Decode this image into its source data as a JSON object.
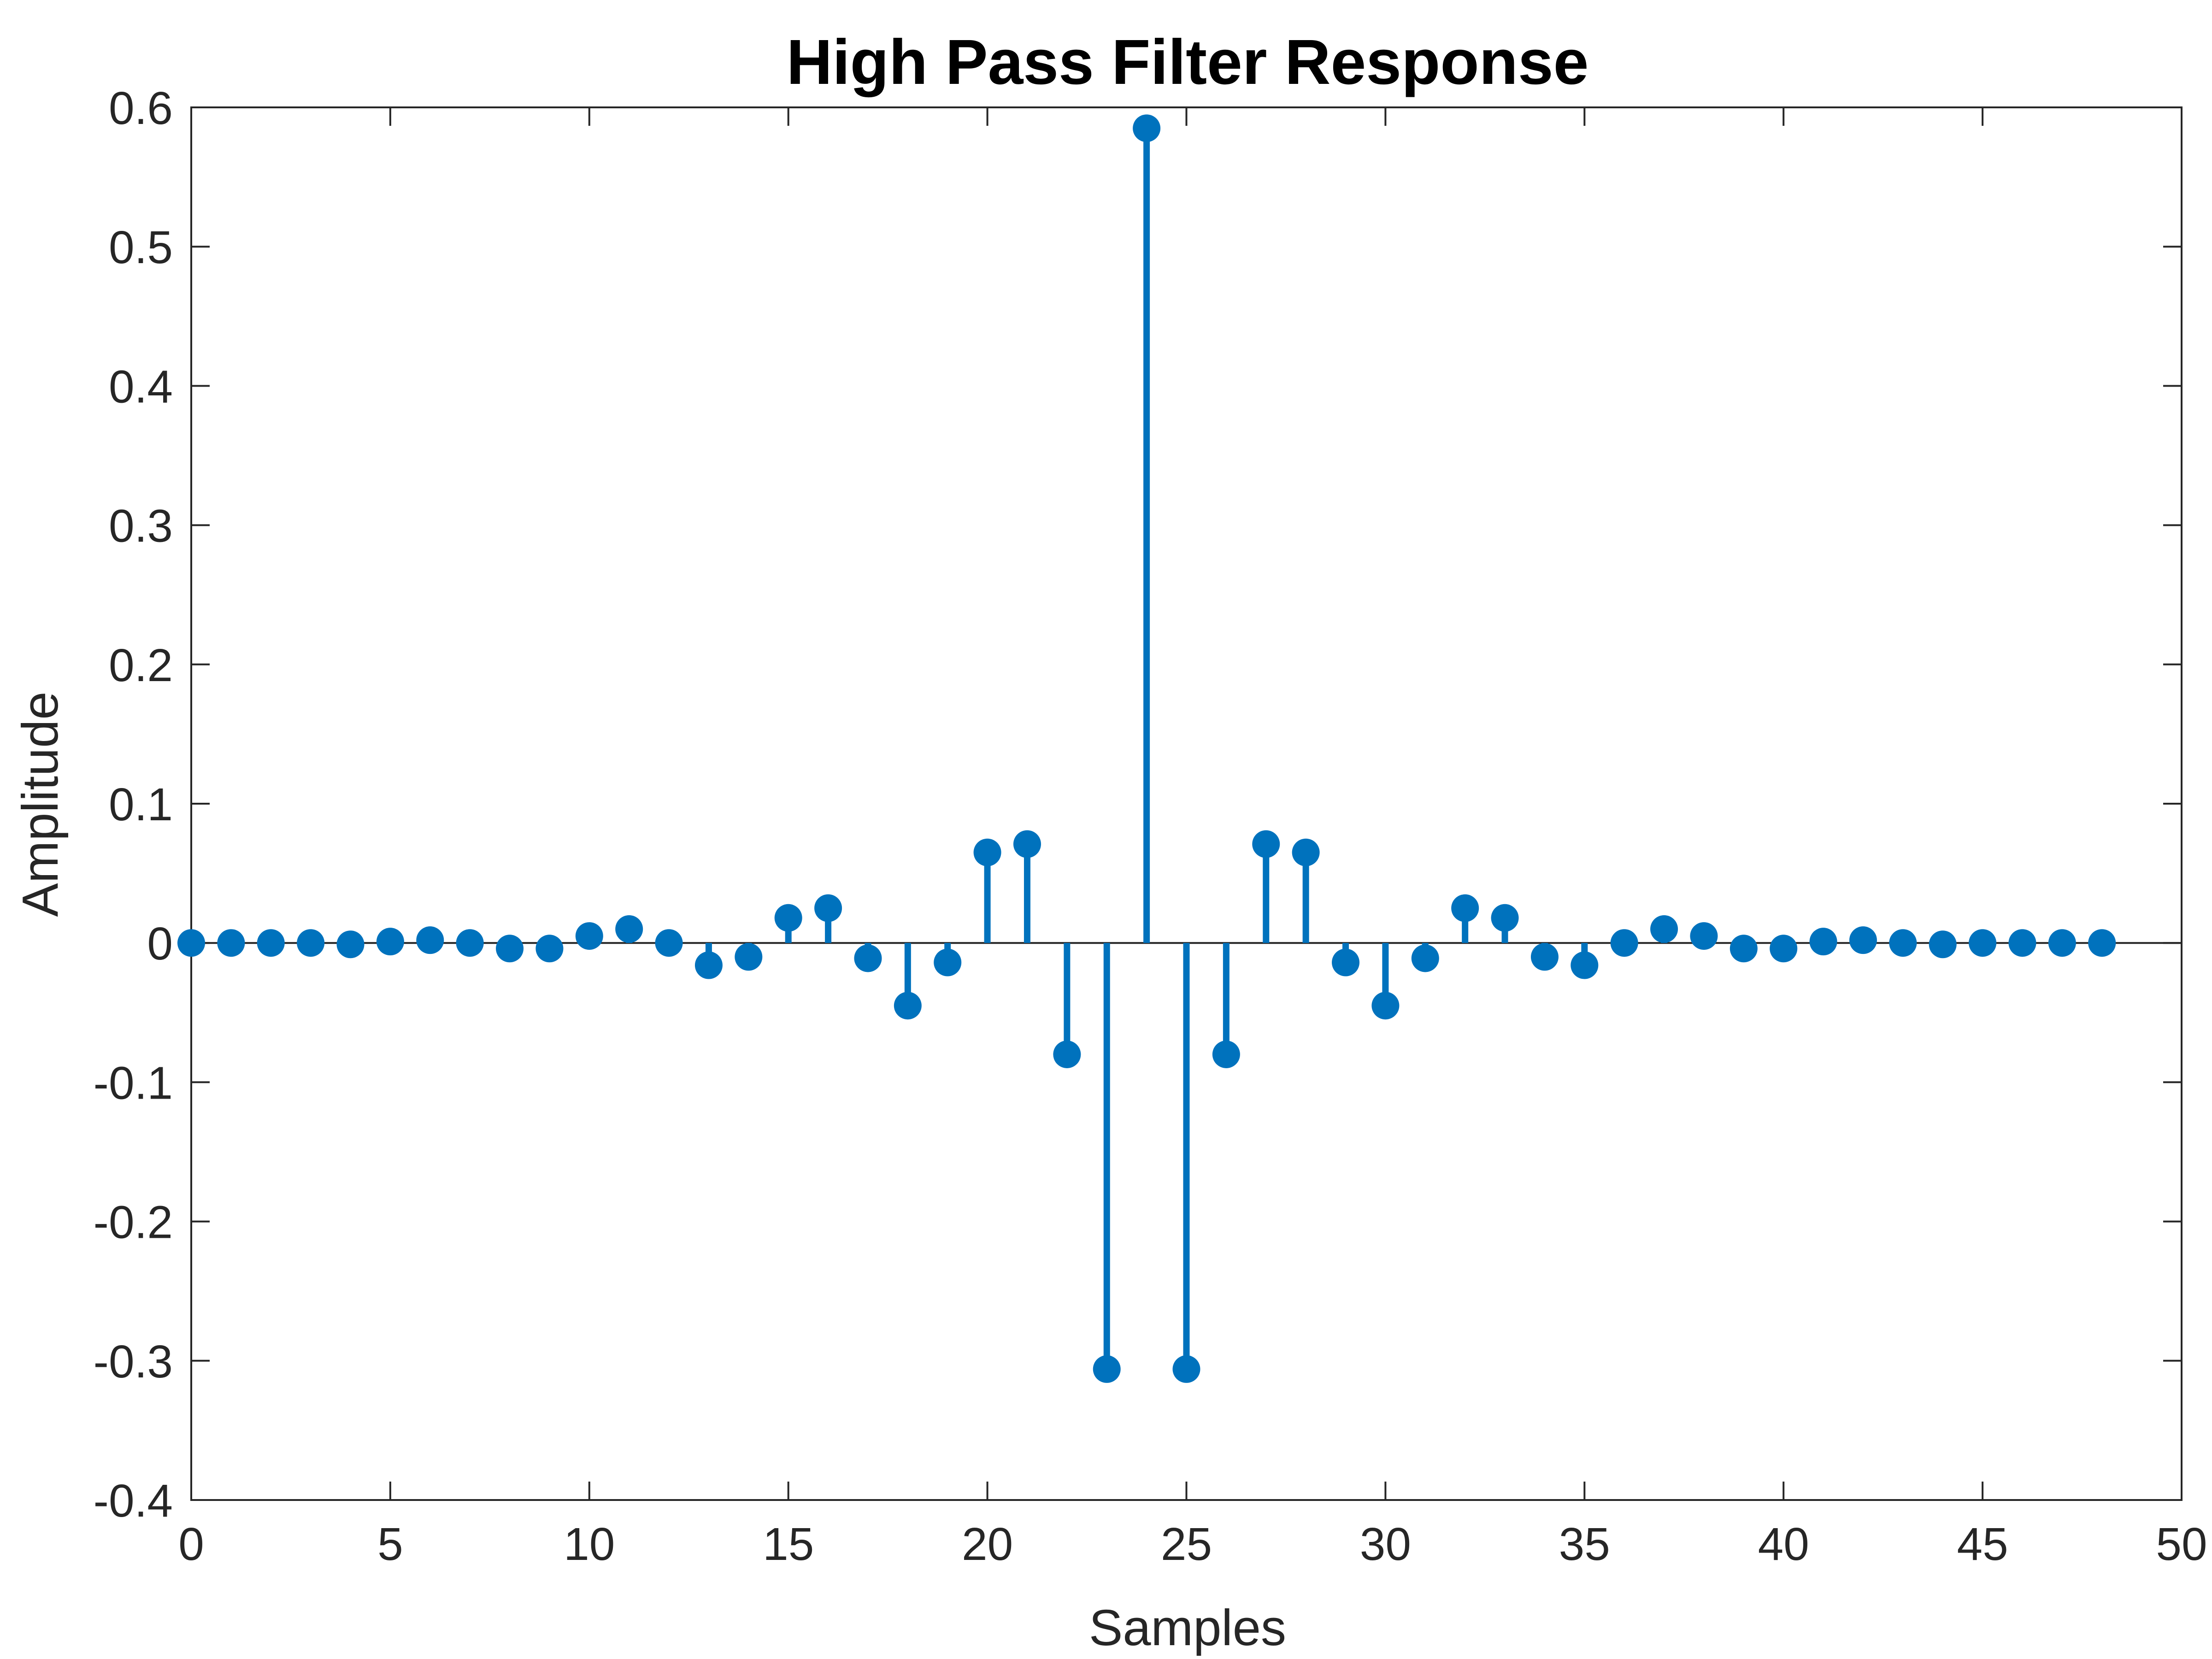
{
  "chart_data": {
    "type": "stem",
    "title": "High Pass Filter Response",
    "xlabel": "Samples",
    "ylabel": "Amplitude",
    "xlim": [
      0,
      50
    ],
    "ylim": [
      -0.4,
      0.6
    ],
    "xticks": [
      0,
      5,
      10,
      15,
      20,
      25,
      30,
      35,
      40,
      45,
      50
    ],
    "xtick_labels": [
      "0",
      "5",
      "10",
      "15",
      "20",
      "25",
      "30",
      "35",
      "40",
      "45",
      "50"
    ],
    "yticks": [
      0.6,
      0.5,
      0.4,
      0.3,
      0.2,
      0.1,
      0,
      -0.1,
      -0.2,
      -0.3,
      -0.4
    ],
    "ytick_labels": [
      "0.6",
      "0.5",
      "0.4",
      "0.3",
      "0.2",
      "0.1",
      "0",
      "-0.1",
      "-0.2",
      "-0.3",
      "-0.4"
    ],
    "grid": false,
    "color": "#0072BD",
    "x": [
      0,
      1,
      2,
      3,
      4,
      5,
      6,
      7,
      8,
      9,
      10,
      11,
      12,
      13,
      14,
      15,
      16,
      17,
      18,
      19,
      20,
      21,
      22,
      23,
      24,
      25,
      26,
      27,
      28,
      29,
      30,
      31,
      32,
      33,
      34,
      35,
      36,
      37,
      38,
      39,
      40,
      41,
      42,
      43,
      44,
      45,
      46,
      47,
      48
    ],
    "values": [
      0,
      0,
      0,
      0,
      -0.001,
      0.001,
      0.002,
      0,
      -0.004,
      -0.004,
      0.005,
      0.01,
      0,
      -0.016,
      -0.01,
      0.018,
      0.025,
      -0.011,
      -0.045,
      -0.014,
      0.065,
      0.071,
      -0.08,
      -0.306,
      0.585,
      -0.306,
      -0.08,
      0.071,
      0.065,
      -0.014,
      -0.045,
      -0.011,
      0.025,
      0.018,
      -0.01,
      -0.016,
      0,
      0.01,
      0.005,
      -0.004,
      -0.004,
      0.001,
      0.002,
      0,
      -0.001,
      0,
      0,
      0,
      0
    ]
  }
}
